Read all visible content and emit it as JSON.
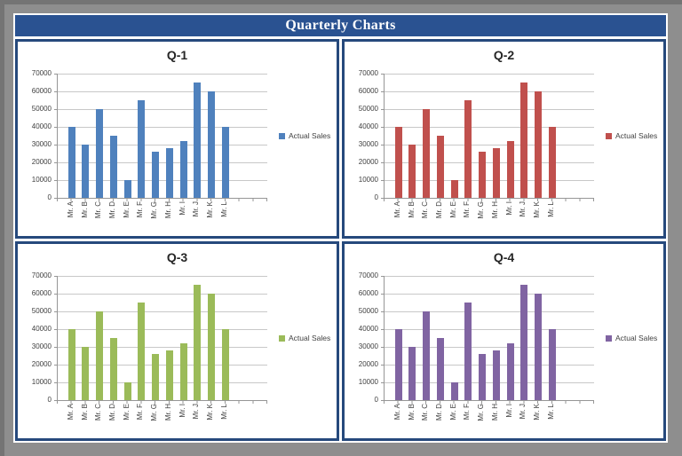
{
  "header": {
    "title": "Quarterly Charts"
  },
  "colors": {
    "page_background": "#8e8e8e",
    "page_edge_shadow": "#747474",
    "frame_background": "#ffffff",
    "titlebar_background": "#2a5291",
    "titlebar_text": "#ffffff",
    "panel_border": "#26497c",
    "panel_background": "#ffffff",
    "gridline": "#c8c8c8",
    "axis_line": "#969696",
    "axis_text": "#404040",
    "chart_title_text": "#262626"
  },
  "chart_data": [
    {
      "type": "bar",
      "title": "Q-1",
      "categories": [
        "Mr. A",
        "Mr. B",
        "Mr. C",
        "Mr. D",
        "Mr. E",
        "Mr. F",
        "Mr. G",
        "Mr. H",
        "Mr. I",
        "Mr. J",
        "Mr. K",
        "Mr. L"
      ],
      "series": [
        {
          "name": "Actual Sales",
          "values": [
            40000,
            30000,
            50000,
            35000,
            10000,
            55000,
            26000,
            28000,
            32000,
            65000,
            60000,
            40000
          ]
        }
      ],
      "bar_color": "#4f81bd",
      "ylim": [
        0,
        70000
      ],
      "yticks": [
        0,
        10000,
        20000,
        30000,
        40000,
        50000,
        60000,
        70000
      ],
      "grid": true,
      "legend_position": "right",
      "category_slots": 15
    },
    {
      "type": "bar",
      "title": "Q-2",
      "categories": [
        "Mr. A",
        "Mr. B",
        "Mr. C",
        "Mr. D",
        "Mr. E",
        "Mr. F",
        "Mr. G",
        "Mr. H",
        "Mr. I",
        "Mr. J",
        "Mr. K",
        "Mr. L"
      ],
      "series": [
        {
          "name": "Actual Sales",
          "values": [
            40000,
            30000,
            50000,
            35000,
            10000,
            55000,
            26000,
            28000,
            32000,
            65000,
            60000,
            40000
          ]
        }
      ],
      "bar_color": "#c0504d",
      "ylim": [
        0,
        70000
      ],
      "yticks": [
        0,
        10000,
        20000,
        30000,
        40000,
        50000,
        60000,
        70000
      ],
      "grid": true,
      "legend_position": "right",
      "category_slots": 15
    },
    {
      "type": "bar",
      "title": "Q-3",
      "categories": [
        "Mr. A",
        "Mr. B",
        "Mr. C",
        "Mr. D",
        "Mr. E",
        "Mr. F",
        "Mr. G",
        "Mr. H",
        "Mr. I",
        "Mr. J",
        "Mr. K",
        "Mr. L"
      ],
      "series": [
        {
          "name": "Actual Sales",
          "values": [
            40000,
            30000,
            50000,
            35000,
            10000,
            55000,
            26000,
            28000,
            32000,
            65000,
            60000,
            40000
          ]
        }
      ],
      "bar_color": "#9bbb59",
      "ylim": [
        0,
        70000
      ],
      "yticks": [
        0,
        10000,
        20000,
        30000,
        40000,
        50000,
        60000,
        70000
      ],
      "grid": true,
      "legend_position": "right",
      "category_slots": 15
    },
    {
      "type": "bar",
      "title": "Q-4",
      "categories": [
        "Mr. A",
        "Mr. B",
        "Mr. C",
        "Mr. D",
        "Mr. E",
        "Mr. F",
        "Mr. G",
        "Mr. H",
        "Mr. I",
        "Mr. J",
        "Mr. K",
        "Mr. L"
      ],
      "series": [
        {
          "name": "Actual Sales",
          "values": [
            40000,
            30000,
            50000,
            35000,
            10000,
            55000,
            26000,
            28000,
            32000,
            65000,
            60000,
            40000
          ]
        }
      ],
      "bar_color": "#8064a2",
      "ylim": [
        0,
        70000
      ],
      "yticks": [
        0,
        10000,
        20000,
        30000,
        40000,
        50000,
        60000,
        70000
      ],
      "grid": true,
      "legend_position": "right",
      "category_slots": 15
    }
  ]
}
